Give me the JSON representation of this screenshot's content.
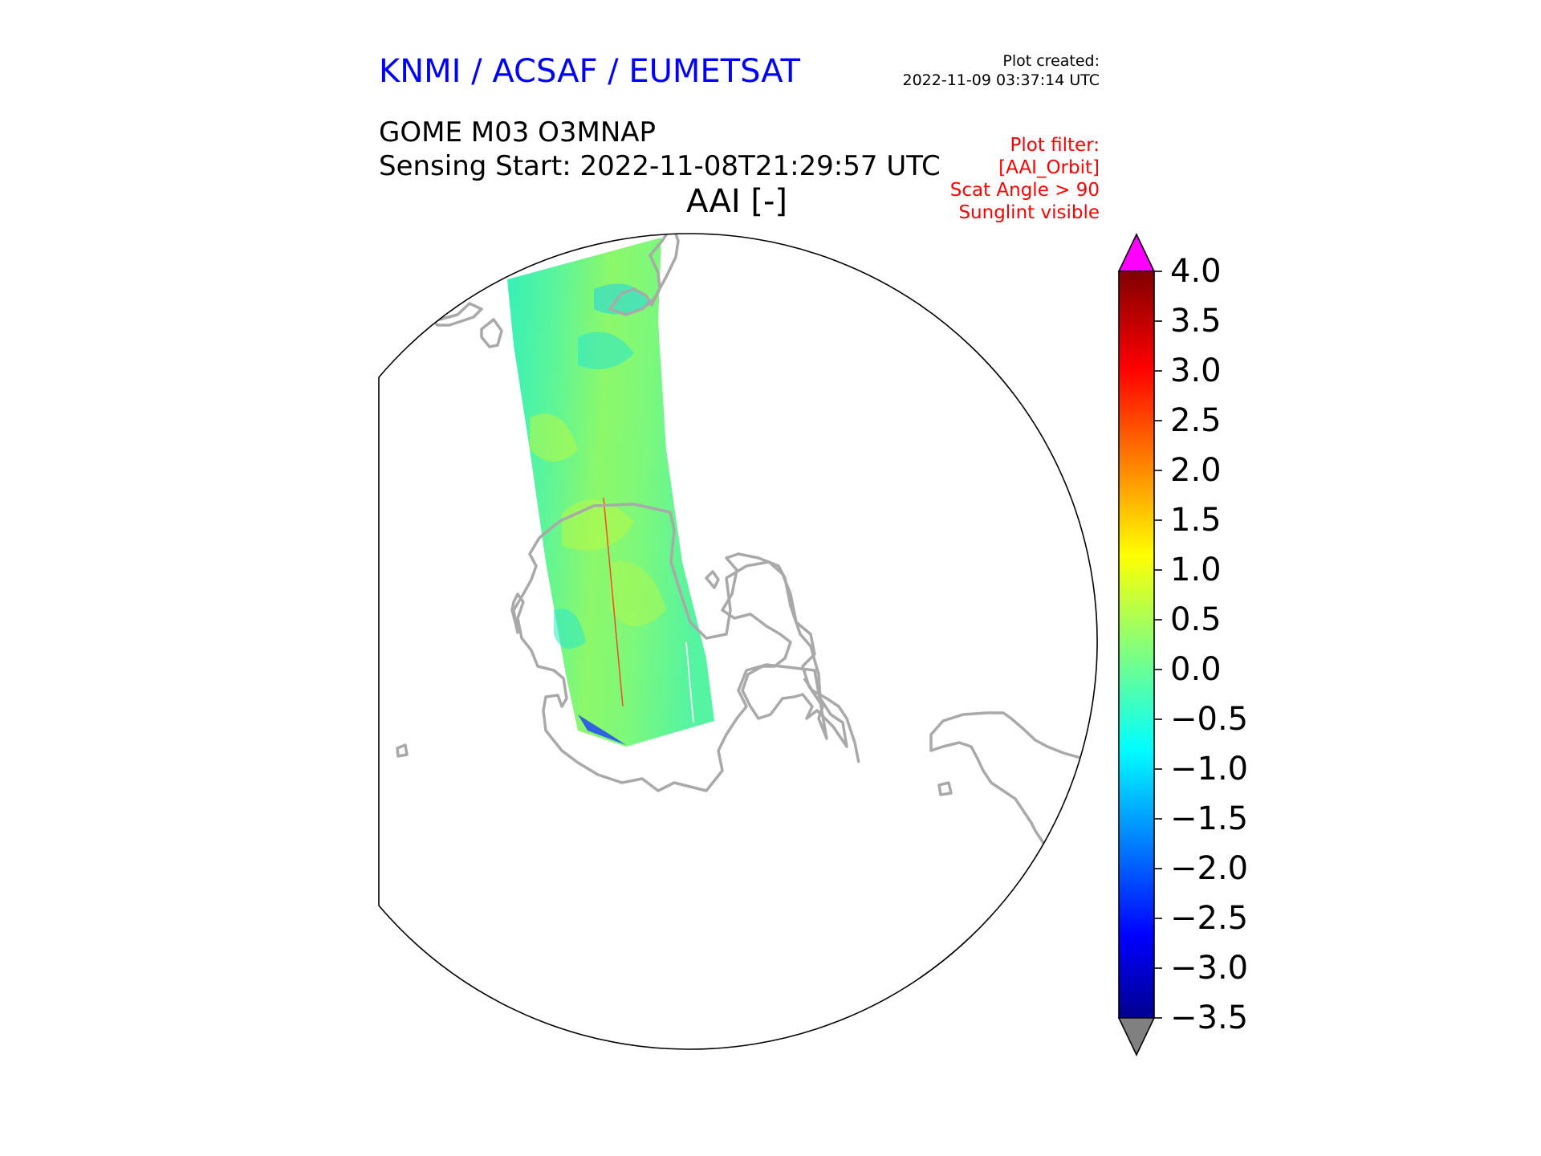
{
  "header": {
    "organization": "KNMI / ACSAF / EUMETSAT",
    "created_label": "Plot created:",
    "created_time": "2022-11-09 03:37:14 UTC",
    "product": "GOME M03 O3MNAP",
    "sensing_start": "Sensing Start: 2022-11-08T21:29:57 UTC",
    "variable": "AAI [-]"
  },
  "filter": {
    "lines": [
      "Plot filter:",
      "[AAI_Orbit]",
      "Scat Angle > 90",
      "Sunglint visible"
    ]
  },
  "colorbar": {
    "ticks": [
      "4.0",
      "3.5",
      "3.0",
      "2.5",
      "2.0",
      "1.5",
      "1.0",
      "0.5",
      "0.0",
      "−0.5",
      "−1.0",
      "−1.5",
      "−2.0",
      "−2.5",
      "−3.0",
      "−3.5"
    ],
    "min": -3.5,
    "max": 4.0,
    "colormap": "jet",
    "extend_max_color": "#ff00ff",
    "extend_min_color": "#808080"
  },
  "map": {
    "projection": "orthographic (south polar view)",
    "coastline_color": "#a9a9a9",
    "swath": "AAI swath over Antarctica",
    "swath_dominant_range": [
      -1.0,
      1.5
    ]
  }
}
